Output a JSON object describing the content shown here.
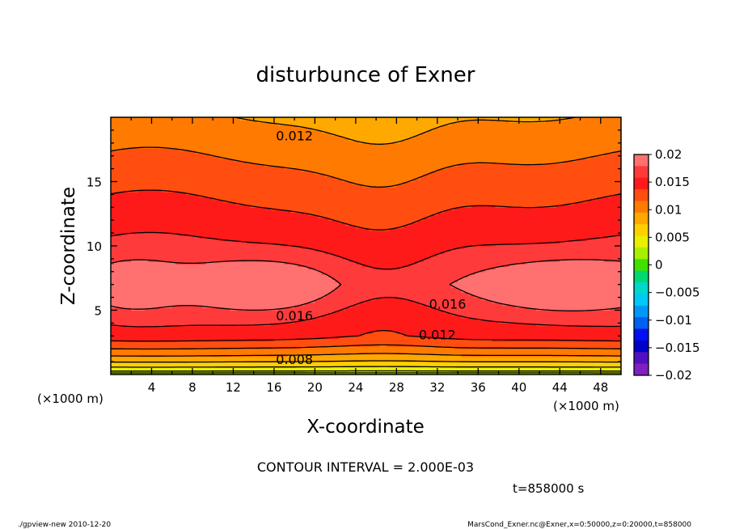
{
  "chart_data": {
    "type": "heatmap",
    "title": "disturbunce of Exner",
    "xlabel": "X-coordinate",
    "ylabel": "Z-coordinate",
    "x_unit": "(×1000 m)",
    "y_unit": "(×1000 m)",
    "xlim": [
      0,
      50
    ],
    "ylim": [
      0,
      20
    ],
    "x_ticks": [
      4,
      8,
      12,
      16,
      20,
      24,
      28,
      32,
      36,
      40,
      44,
      48
    ],
    "y_ticks": [
      5,
      10,
      15
    ],
    "contour_interval_text": "CONTOUR INTERVAL = 2.000E-03",
    "time_text": "t=858000 s",
    "contour_labels": [
      {
        "text": "0.012",
        "x": 18,
        "z": 18.6
      },
      {
        "text": "0.016",
        "x": 18,
        "z": 4.6
      },
      {
        "text": "0.016",
        "x": 33,
        "z": 5.5
      },
      {
        "text": "0.012",
        "x": 32,
        "z": 3.1
      },
      {
        "text": "0.008",
        "x": 18,
        "z": 1.2
      }
    ],
    "colorbar": {
      "range": [
        -0.02,
        0.02
      ],
      "tick_labels": [
        "0.02",
        "0.015",
        "0.01",
        "0.005",
        "0",
        "−0.005",
        "−0.01",
        "−0.015",
        "−0.02"
      ],
      "colors": [
        "#FF7070",
        "#FF3A3A",
        "#FF1A1A",
        "#FF4E10",
        "#FF7A00",
        "#FFA800",
        "#FFD000",
        "#E6F000",
        "#A8F000",
        "#40E000",
        "#00D870",
        "#00D8C8",
        "#00C8F8",
        "#0098F8",
        "#0060F0",
        "#0010F0",
        "#0000C8",
        "#5010C0",
        "#8020C0"
      ]
    },
    "field_description": "Exner disturbance: ~0 at surface rising to ~0.02 max near z=7 at x≈16 and x≈44; minimum thickness near x≈27"
  },
  "footer": {
    "left": "./gpview-new   2010-12-20",
    "right": "MarsCond_Exner.nc@Exner,x=0:50000,z=0:20000,t=858000"
  }
}
